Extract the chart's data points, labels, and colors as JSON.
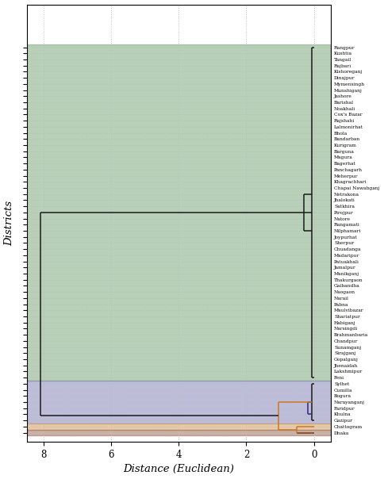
{
  "districts_top_to_bottom": [
    "Rangpur",
    "Kushtia",
    "Tangail",
    "Rajbari",
    "Kishoreganj",
    "Dinajpur",
    "Mymensingh",
    "Munshiganj",
    "Jashore",
    "Barishal",
    "Noakhali",
    "Cox's Bazar",
    "Rajshahi",
    "Lalmonirhat",
    "Bhola",
    "Bandarban",
    "Kurigram",
    "Barguna",
    "Magura",
    "Bagerhat",
    "Panchagarh",
    "Meherpur",
    "Khagrachhari",
    "Chapai Nawabganj",
    "Netrakona",
    "Jhalokati",
    "Satkhira",
    "Pirojpur",
    "Natore",
    "Rangamati",
    "Nilphamari",
    "Joypurhat",
    "Sherpur",
    "Chuadanga",
    "Madaripur",
    "Patuakhali",
    "Jamalpur",
    "Manikganj",
    "Thakurgaon",
    "Gaibandha",
    "Naogaon",
    "Narail",
    "Pabna",
    "Maulvibazar",
    "Shariatpur",
    "Habiganj",
    "Narsingdi",
    "Brahmanbaria",
    "Chandpur",
    "Sunamganj",
    "Sirajganj",
    "Gopalganj",
    "Jhenaidah",
    "Lakshmipur",
    "Feni",
    "Sylhet",
    "Cumilla",
    "Bogura",
    "Narayanganj",
    "Faridpur",
    "Khulna",
    "Gazipur",
    "Chattogram",
    "Dhaka"
  ],
  "color_green_bg": "#7faa7f",
  "color_purple_bg": "#8888bb",
  "color_orange_bg": "#d4a060",
  "color_brown_bg": "#a07060",
  "color_black": "#1a1a1a",
  "color_orange_line": "#cc7820",
  "color_brown_line": "#7a3a10",
  "color_purple_line": "#2a2a8a",
  "xlabel": "Distance (Euclidean)",
  "ylabel": "Districts",
  "bg_color": "#ffffff",
  "grid_color": "#bbbbbb",
  "n_green": 55,
  "n_purple": 7,
  "n_orange": 1,
  "n_brown": 1
}
